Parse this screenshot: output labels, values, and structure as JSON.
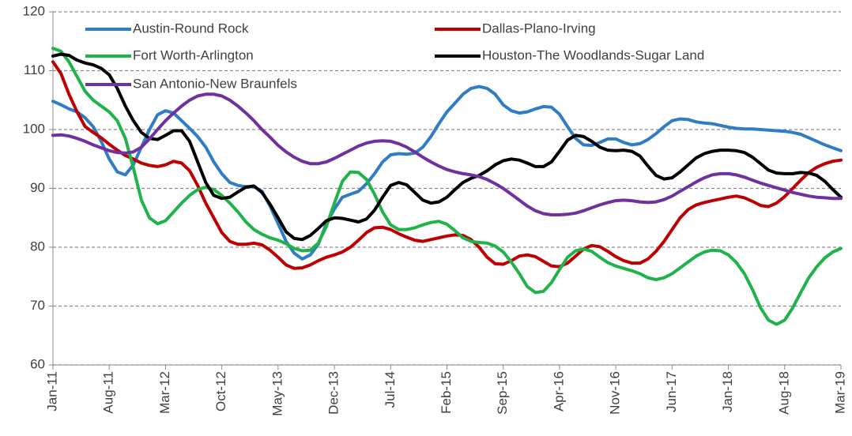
{
  "chart_data": {
    "type": "line",
    "categories": [
      "Jan-11",
      null,
      null,
      null,
      null,
      null,
      null,
      "Aug-11",
      null,
      null,
      null,
      null,
      null,
      null,
      "Mar-12",
      null,
      null,
      null,
      null,
      null,
      null,
      "Oct-12",
      null,
      null,
      null,
      null,
      null,
      null,
      "May-13",
      null,
      null,
      null,
      null,
      null,
      null,
      "Dec-13",
      null,
      null,
      null,
      null,
      null,
      null,
      "Jul-14",
      null,
      null,
      null,
      null,
      null,
      null,
      "Feb-15",
      null,
      null,
      null,
      null,
      null,
      null,
      "Sep-15",
      null,
      null,
      null,
      null,
      null,
      null,
      "Apr-16",
      null,
      null,
      null,
      null,
      null,
      null,
      "Nov-16",
      null,
      null,
      null,
      null,
      null,
      null,
      "Jun-17",
      null,
      null,
      null,
      null,
      null,
      null,
      "Jan-18",
      null,
      null,
      null,
      null,
      null,
      null,
      "Aug-18",
      null,
      null,
      null,
      null,
      null,
      null,
      "Mar-19"
    ],
    "series": [
      {
        "name": "Austin-Round Rock",
        "color": "#2e7dc5",
        "values": [
          104.8,
          104.2,
          103.5,
          103,
          102,
          100.5,
          98,
          95,
          92.8,
          92.3,
          94,
          97,
          100,
          102.5,
          103.2,
          102.8,
          101.5,
          100.2,
          98.8,
          97,
          94.5,
          92.5,
          91,
          90.5,
          90.3,
          90.3,
          89.5,
          87,
          84,
          81,
          79,
          78,
          78.7,
          80.5,
          84,
          86.5,
          88.5,
          89,
          89.5,
          90.8,
          92.5,
          94.5,
          95.7,
          95.9,
          95.8,
          96,
          97,
          98.8,
          101,
          103,
          104.5,
          106,
          107,
          107.3,
          107,
          106,
          104.2,
          103.2,
          102.8,
          103,
          103.5,
          103.9,
          103.8,
          102.6,
          100.5,
          98.5,
          97.4,
          97.3,
          97.8,
          98.4,
          98.4,
          97.8,
          97.4,
          97.6,
          98.3,
          99.3,
          100.5,
          101.5,
          101.8,
          101.7,
          101.3,
          101.1,
          101,
          100.7,
          100.4,
          100.2,
          100.1,
          100.1,
          100,
          99.9,
          99.8,
          99.7,
          99.5,
          99.2,
          98.6,
          98,
          97.4,
          96.9,
          96.4
        ]
      },
      {
        "name": "Dallas-Plano-Irving",
        "color": "#c00000",
        "values": [
          111.5,
          109.5,
          106,
          103,
          100.5,
          99.5,
          98.6,
          97.5,
          96.5,
          95.6,
          95,
          94.3,
          93.9,
          93.7,
          94,
          94.6,
          94.3,
          93,
          90.5,
          87.5,
          85,
          82.5,
          81,
          80.5,
          80.5,
          80.7,
          80.4,
          79.5,
          78.3,
          77,
          76.4,
          76.5,
          77,
          77.7,
          78.3,
          78.7,
          79.2,
          80,
          81.2,
          82.5,
          83.3,
          83.4,
          83,
          82.3,
          81.7,
          81.2,
          81,
          81.3,
          81.6,
          81.9,
          82.1,
          82,
          81.3,
          80,
          78.3,
          77.2,
          77.1,
          77.7,
          78.5,
          78.7,
          78.4,
          77.6,
          76.8,
          76.7,
          77.3,
          78.5,
          79.7,
          80.3,
          80.1,
          79.3,
          78.4,
          77.7,
          77.3,
          77.3,
          78,
          79.3,
          81,
          83,
          85,
          86.4,
          87.2,
          87.6,
          87.9,
          88.2,
          88.5,
          88.7,
          88.4,
          87.8,
          87.1,
          86.9,
          87.5,
          88.6,
          90,
          91.4,
          92.7,
          93.6,
          94.2,
          94.6,
          94.8
        ]
      },
      {
        "name": "Fort Worth-Arlington",
        "color": "#1fb34a",
        "values": [
          113.8,
          113.3,
          111.5,
          109,
          106.5,
          105,
          104,
          103,
          101.5,
          98.5,
          93.5,
          88,
          85,
          84,
          84.5,
          86,
          87.5,
          88.8,
          89.8,
          90.2,
          89.8,
          88.8,
          87.5,
          86,
          84.3,
          83,
          82.2,
          81.6,
          81.2,
          80.6,
          79.8,
          79.4,
          79.5,
          80.7,
          83.5,
          87.5,
          91.2,
          92.8,
          92.7,
          91.5,
          89,
          86,
          83.8,
          83,
          83,
          83.3,
          83.8,
          84.2,
          84.4,
          83.9,
          82.8,
          81.6,
          81,
          80.8,
          80.7,
          80.2,
          79.2,
          77.5,
          75.5,
          73.3,
          72.3,
          72.5,
          74,
          76.2,
          78.3,
          79.4,
          79.7,
          79.3,
          78.3,
          77.4,
          76.8,
          76.4,
          76,
          75.5,
          74.8,
          74.5,
          74.8,
          75.5,
          76.5,
          77.5,
          78.5,
          79.2,
          79.5,
          79.4,
          78.7,
          77.4,
          75.5,
          72.8,
          69.7,
          67.6,
          66.9,
          67.6,
          69.7,
          72.3,
          74.8,
          76.7,
          78.2,
          79.2,
          79.8
        ]
      },
      {
        "name": "Houston-The Woodlands-Sugar Land",
        "color": "#000000",
        "values": [
          112.5,
          112.8,
          112.6,
          111.8,
          111.3,
          111,
          110.4,
          109.3,
          107,
          104,
          101.5,
          99.5,
          98.5,
          98.3,
          99,
          99.8,
          99.8,
          98,
          94.5,
          91,
          88.8,
          88.3,
          88.5,
          89.4,
          90.2,
          90.4,
          89.3,
          87.3,
          85,
          82.6,
          81.5,
          81.3,
          82,
          83.2,
          84.5,
          85,
          84.9,
          84.6,
          84.3,
          84.8,
          86.3,
          88.5,
          90.5,
          91,
          90.6,
          89.3,
          88,
          87.5,
          87.7,
          88.5,
          89.8,
          91,
          91.7,
          92.2,
          93,
          94,
          94.7,
          95,
          94.8,
          94.3,
          93.7,
          93.7,
          94.5,
          96.3,
          98.2,
          99,
          98.8,
          98,
          97,
          96.5,
          96.4,
          96.5,
          96.3,
          95.5,
          93.8,
          92.2,
          91.6,
          91.8,
          92.8,
          94,
          95.2,
          95.9,
          96.3,
          96.5,
          96.5,
          96.4,
          96.1,
          95.3,
          94.2,
          93.1,
          92.6,
          92.5,
          92.5,
          92.7,
          92.6,
          92.2,
          91.2,
          89.8,
          88.5
        ]
      },
      {
        "name": "San Antonio-New Braunfels",
        "color": "#7030a0",
        "values": [
          99,
          99.1,
          98.9,
          98.5,
          98,
          97.4,
          96.9,
          96.4,
          96.1,
          96,
          96.2,
          97,
          98.4,
          100,
          101.5,
          102.8,
          104,
          105,
          105.7,
          106,
          106,
          105.7,
          105,
          104,
          102.8,
          101.5,
          100,
          98.7,
          97.3,
          96.2,
          95.3,
          94.6,
          94.2,
          94.2,
          94.5,
          95.1,
          95.8,
          96.5,
          97.2,
          97.7,
          98,
          98.1,
          98,
          97.6,
          97,
          96.2,
          95.3,
          94.5,
          93.8,
          93.2,
          92.8,
          92.5,
          92.3,
          92,
          91.5,
          90.8,
          90,
          89,
          88,
          87,
          86.2,
          85.7,
          85.5,
          85.5,
          85.6,
          85.8,
          86.2,
          86.7,
          87.2,
          87.6,
          87.9,
          88,
          87.9,
          87.7,
          87.6,
          87.7,
          88.1,
          88.7,
          89.5,
          90.3,
          91.1,
          91.8,
          92.3,
          92.5,
          92.5,
          92.3,
          91.9,
          91.4,
          90.9,
          90.5,
          90.1,
          89.7,
          89.3,
          89,
          88.7,
          88.5,
          88.4,
          88.3,
          88.3
        ]
      }
    ],
    "ylim": [
      60,
      120
    ],
    "yticks": [
      60,
      70,
      80,
      90,
      100,
      110,
      120
    ],
    "grid": true,
    "legend": "top"
  }
}
